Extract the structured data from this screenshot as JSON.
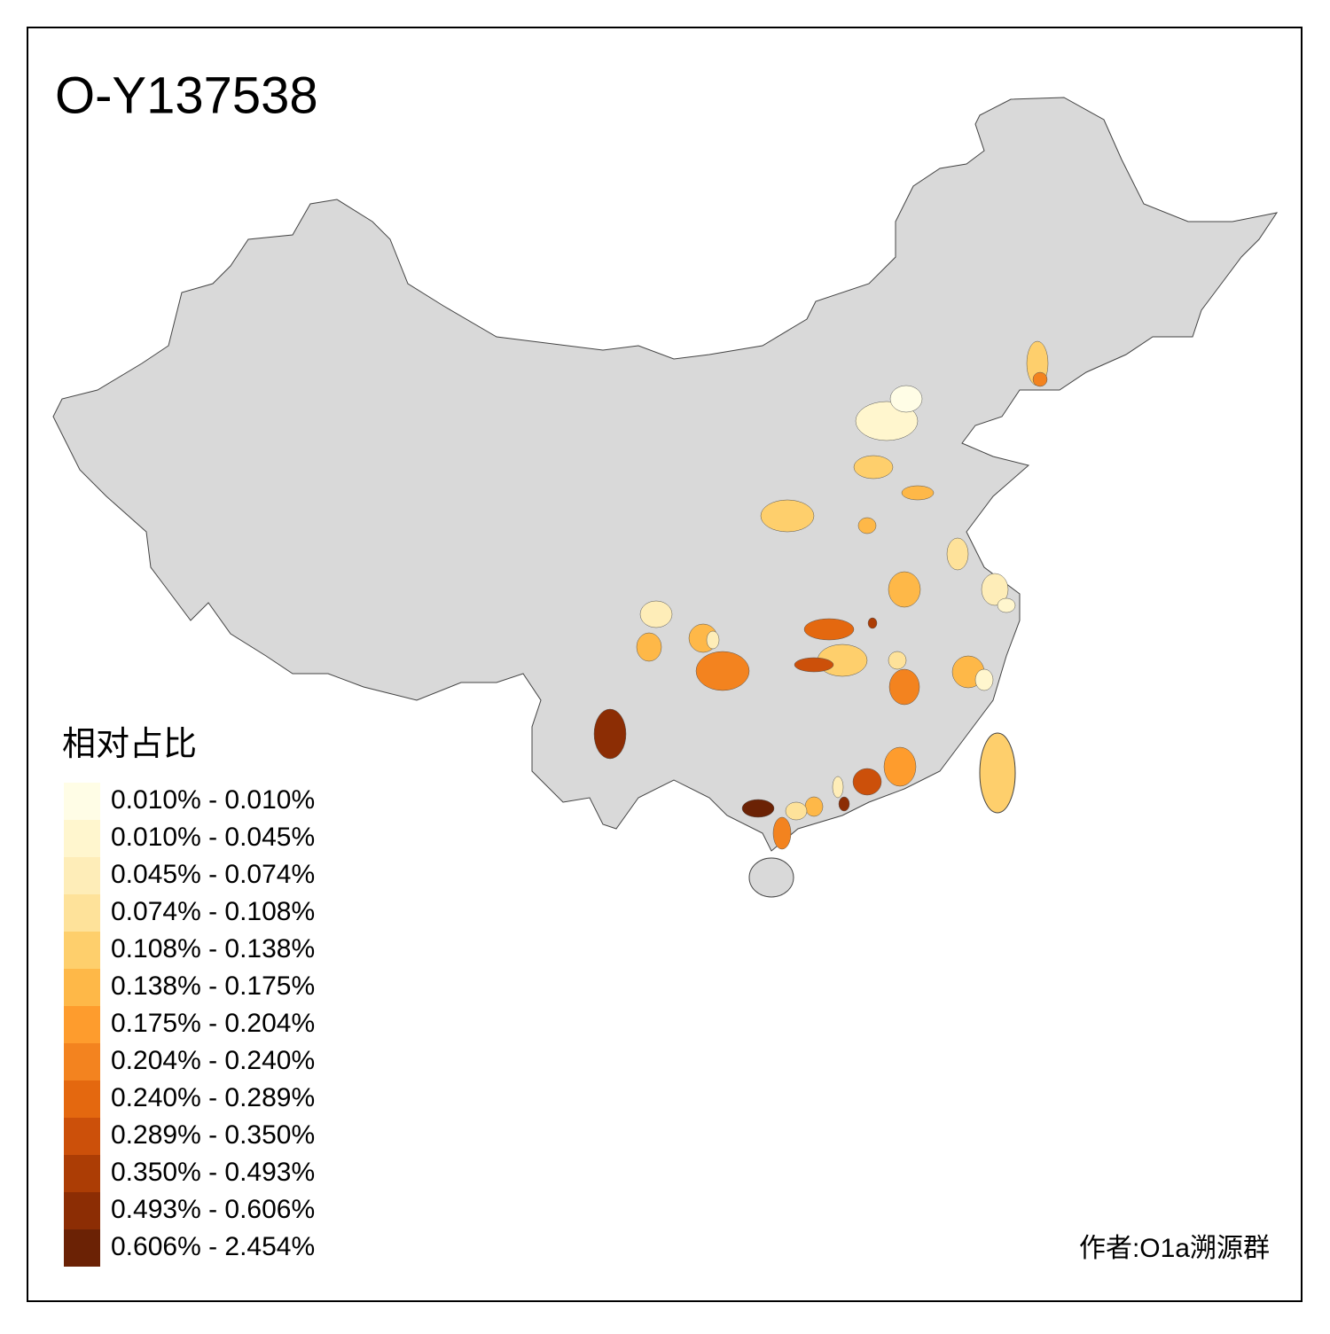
{
  "title": "O-Y137538",
  "legend": {
    "title": "相对占比",
    "items": [
      {
        "label": "0.010% - 0.010%",
        "color": "#FFFDE6"
      },
      {
        "label": "0.010% - 0.045%",
        "color": "#FFF6CE"
      },
      {
        "label": "0.045% - 0.074%",
        "color": "#FEEDB8"
      },
      {
        "label": "0.074% - 0.108%",
        "color": "#FEE29A"
      },
      {
        "label": "0.108% - 0.138%",
        "color": "#FECF6C"
      },
      {
        "label": "0.138% - 0.175%",
        "color": "#FEB848"
      },
      {
        "label": "0.175% - 0.204%",
        "color": "#FE9C2D"
      },
      {
        "label": "0.204% - 0.240%",
        "color": "#F3831F"
      },
      {
        "label": "0.240% - 0.289%",
        "color": "#E4680F"
      },
      {
        "label": "0.289% - 0.350%",
        "color": "#CC500A"
      },
      {
        "label": "0.350% - 0.493%",
        "color": "#AC3D05"
      },
      {
        "label": "0.493% - 0.606%",
        "color": "#8C2D04"
      },
      {
        "label": "0.606% - 2.454%",
        "color": "#6B2205"
      }
    ]
  },
  "author": "作者:O1a溯源群"
}
